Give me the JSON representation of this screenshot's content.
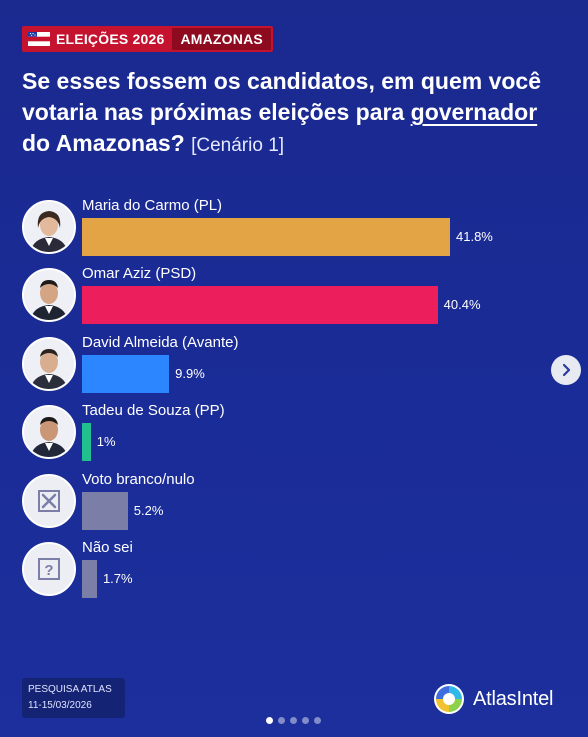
{
  "header": {
    "tag_state": "ELEIÇÕES 2026",
    "tag_region": "AMAZONAS"
  },
  "question": {
    "part1": "Se esses fossem os candidatos, em quem você votaria nas próximas eleições para ",
    "underlined": "governador",
    "part2": " do Amazonas? ",
    "scenario": "[Cenário 1]"
  },
  "colors": {
    "background": "#1b2a8f",
    "tag_red": "#c4122f",
    "pl": "#e2a444",
    "psd": "#ec1e5b",
    "avante": "#2b86ff",
    "pp": "#22c08e",
    "other": "#7b7fa8"
  },
  "chart_data": {
    "type": "bar",
    "orientation": "horizontal",
    "categories": [
      "Maria do Carmo (PL)",
      "Omar Aziz (PSD)",
      "David Almeida (Avante)",
      "Tadeu de Souza (PP)",
      "Voto branco/nulo",
      "Não sei"
    ],
    "values": [
      41.8,
      40.4,
      9.9,
      1,
      5.2,
      1.7
    ],
    "value_labels": [
      "41.8%",
      "40.4%",
      "9.9%",
      "1%",
      "5.2%",
      "1.7%"
    ],
    "bar_colors": [
      "#e2a444",
      "#ec1e5b",
      "#2b86ff",
      "#22c08e",
      "#7b7fa8",
      "#7b7fa8"
    ],
    "icons": [
      "candidate-photo",
      "candidate-photo",
      "candidate-photo",
      "candidate-photo",
      "x-box-icon",
      "question-box-icon"
    ]
  },
  "footer": {
    "survey_label": "PESQUISA ATLAS",
    "survey_dates": "11-15/03/2026",
    "brand": "AtlasIntel"
  },
  "carousel": {
    "total": 5,
    "active": 0
  }
}
